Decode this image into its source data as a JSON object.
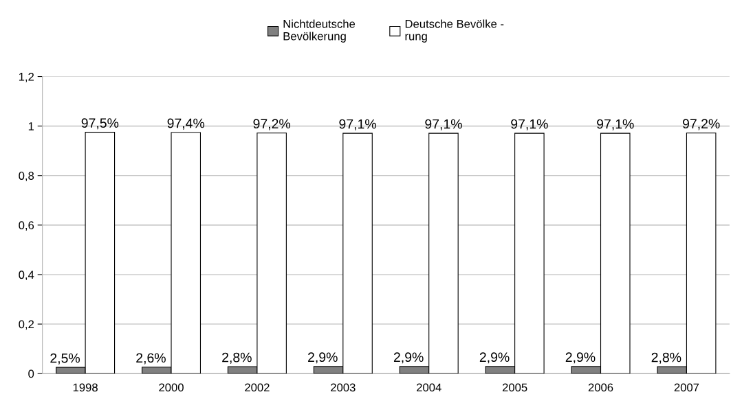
{
  "chart_data": {
    "type": "bar",
    "categories": [
      "1998",
      "2000",
      "2002",
      "2003",
      "2004",
      "2005",
      "2006",
      "2007"
    ],
    "series": [
      {
        "name": "Nichtdeutsche\nBevölkerung",
        "color": "#808080",
        "values": [
          0.025,
          0.026,
          0.028,
          0.029,
          0.029,
          0.029,
          0.029,
          0.028
        ],
        "value_labels": [
          "2,5%",
          "2,6%",
          "2,8%",
          "2,9%",
          "2,9%",
          "2,9%",
          "2,9%",
          "2,8%"
        ]
      },
      {
        "name": "Deutsche Bevölke -\nrung",
        "color": "#ffffff",
        "values": [
          0.975,
          0.974,
          0.972,
          0.971,
          0.971,
          0.971,
          0.971,
          0.972
        ],
        "value_labels": [
          "97,5%",
          "97,4%",
          "97,2%",
          "97,1%",
          "97,1%",
          "97,1%",
          "97,1%",
          "97,2%"
        ]
      }
    ],
    "ylim": [
      0,
      1.2
    ],
    "yticks": [
      {
        "value": 0,
        "label": "0"
      },
      {
        "value": 0.2,
        "label": "0,2"
      },
      {
        "value": 0.4,
        "label": "0,4"
      },
      {
        "value": 0.6,
        "label": "0,6"
      },
      {
        "value": 0.8,
        "label": "0,8"
      },
      {
        "value": 1,
        "label": "1"
      },
      {
        "value": 1.2,
        "label": "1,2"
      }
    ],
    "grid": "y",
    "legend": "top"
  }
}
